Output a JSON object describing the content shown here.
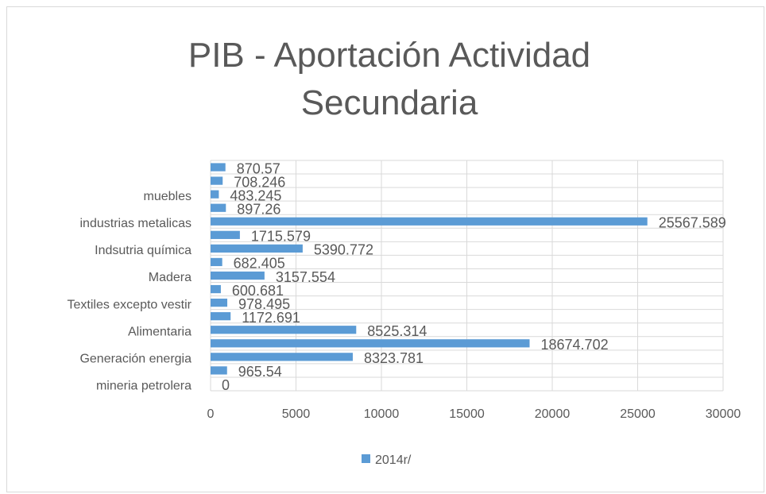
{
  "chart_data": {
    "type": "bar",
    "orientation": "horizontal",
    "title": "PIB - Aportación Actividad Secundaria",
    "categories": [
      "mineria petrolera",
      null,
      "Generación energia",
      null,
      "Alimentaria",
      null,
      "Textiles  excepto vestir",
      null,
      "Madera",
      null,
      "Indsutria química",
      null,
      "industrias metalicas",
      null,
      "muebles",
      null,
      null
    ],
    "series": [
      {
        "name": "2014r/",
        "color": "#5b9bd5",
        "values": [
          0,
          965.54,
          8323.781,
          18674.702,
          8525.314,
          1172.691,
          978.495,
          600.681,
          3157.554,
          682.405,
          5390.772,
          1715.579,
          25567.589,
          897.26,
          483.245,
          708.246,
          870.57
        ]
      }
    ],
    "xlim": [
      0,
      30000
    ],
    "xticks": [
      0,
      5000,
      10000,
      15000,
      20000,
      25000,
      30000
    ],
    "grid": true,
    "legend": "bottom"
  }
}
